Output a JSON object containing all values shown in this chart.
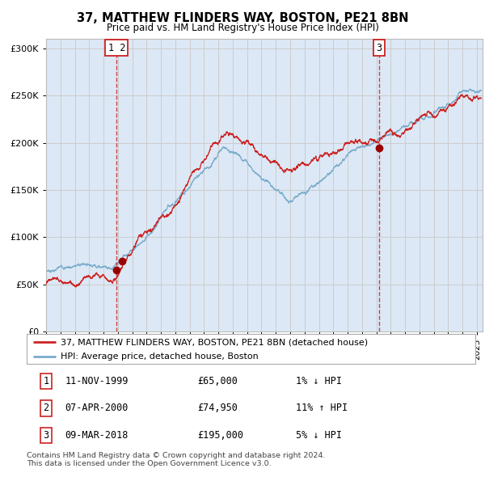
{
  "title": "37, MATTHEW FLINDERS WAY, BOSTON, PE21 8BN",
  "subtitle": "Price paid vs. HM Land Registry's House Price Index (HPI)",
  "legend_line1": "37, MATTHEW FLINDERS WAY, BOSTON, PE21 8BN (detached house)",
  "legend_line2": "HPI: Average price, detached house, Boston",
  "transactions": [
    {
      "num": "1",
      "date": "11-NOV-1999",
      "price": "£65,000",
      "pct": "1% ↓ HPI"
    },
    {
      "num": "2",
      "date": "07-APR-2000",
      "price": "£74,950",
      "pct": "11% ↑ HPI"
    },
    {
      "num": "3",
      "date": "09-MAR-2018",
      "price": "£195,000",
      "pct": "5% ↓ HPI"
    }
  ],
  "vline1_x": 1999.92,
  "vline2_x": 2018.18,
  "box1_label": "1 2",
  "box2_label": "3",
  "trans_years": [
    1999.87,
    2000.27,
    2018.18
  ],
  "trans_prices": [
    65000,
    74950,
    195000
  ],
  "ylabel_ticks": [
    "£0",
    "£50K",
    "£100K",
    "£150K",
    "£200K",
    "£250K",
    "£300K"
  ],
  "ytick_vals": [
    0,
    50000,
    100000,
    150000,
    200000,
    250000,
    300000
  ],
  "ylim": [
    0,
    310000
  ],
  "xlim_start": 1995.0,
  "xlim_end": 2025.4,
  "hpi_color": "#7aabcc",
  "price_color": "#cc2222",
  "dot_color": "#990000",
  "vline_color": "#cc2222",
  "grid_color": "#cccccc",
  "bg_color": "#dce8f5",
  "footer_text1": "Contains HM Land Registry data © Crown copyright and database right 2024.",
  "footer_text2": "This data is licensed under the Open Government Licence v3.0."
}
